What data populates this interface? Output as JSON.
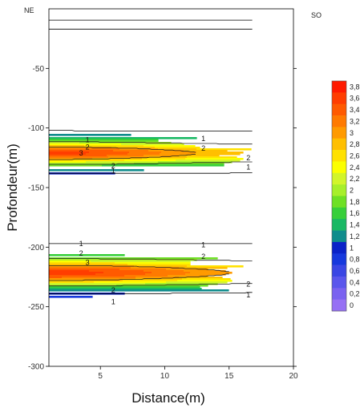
{
  "chart_data": {
    "type": "heatmap",
    "subtype": "contour",
    "xlabel": "Distance(m)",
    "ylabel": "Profondeur(m)",
    "xlim": [
      1,
      20
    ],
    "ylim": [
      -300,
      0
    ],
    "x_ticks": [
      5,
      10,
      15,
      20
    ],
    "y_ticks": [
      -50,
      -100,
      -150,
      -200,
      -250,
      -300
    ],
    "data_extent": {
      "x": [
        1,
        16.8
      ],
      "y": [
        -300,
        0
      ]
    },
    "corner_labels": {
      "left": "NE",
      "right": "SO"
    },
    "colorbar": {
      "levels": [
        "3,8",
        "3,6",
        "3,4",
        "3,2",
        "3",
        "2,8",
        "2,6",
        "2,4",
        "2,2",
        "2",
        "1,8",
        "1,6",
        "1,4",
        "1,2",
        "1",
        "0,8",
        "0,6",
        "0,4",
        "0,2",
        "0"
      ],
      "colors": [
        "#ff1a00",
        "#ff3d00",
        "#ff5a00",
        "#ff7a00",
        "#ff9a00",
        "#ffbf00",
        "#ffe100",
        "#fbff00",
        "#d2f52a",
        "#a7ef2a",
        "#6ee024",
        "#37cf3a",
        "#19b864",
        "#0f8c8c",
        "#0a22c8",
        "#1638dd",
        "#3a46e4",
        "#5a56ec",
        "#7a62f0",
        "#9670f4"
      ]
    },
    "contour_labels": [
      {
        "text": "1",
        "x": 4.0,
        "y": -110
      },
      {
        "text": "2",
        "x": 4.0,
        "y": -116
      },
      {
        "text": "3",
        "x": 3.5,
        "y": -121
      },
      {
        "text": "2",
        "x": 6.0,
        "y": -132
      },
      {
        "text": "1",
        "x": 6.0,
        "y": -136
      },
      {
        "text": "1",
        "x": 13.0,
        "y": -109
      },
      {
        "text": "2",
        "x": 13.0,
        "y": -117
      },
      {
        "text": "2",
        "x": 16.5,
        "y": -125
      },
      {
        "text": "1",
        "x": 16.5,
        "y": -133
      },
      {
        "text": "1",
        "x": 3.5,
        "y": -197
      },
      {
        "text": "2",
        "x": 3.5,
        "y": -205
      },
      {
        "text": "3",
        "x": 4.0,
        "y": -213
      },
      {
        "text": "1",
        "x": 13.0,
        "y": -198
      },
      {
        "text": "2",
        "x": 13.0,
        "y": -208
      },
      {
        "text": "2",
        "x": 6.0,
        "y": -236
      },
      {
        "text": "2",
        "x": 16.5,
        "y": -231
      },
      {
        "text": "1",
        "x": 6.0,
        "y": -246
      },
      {
        "text": "1",
        "x": 16.5,
        "y": -240
      }
    ]
  }
}
